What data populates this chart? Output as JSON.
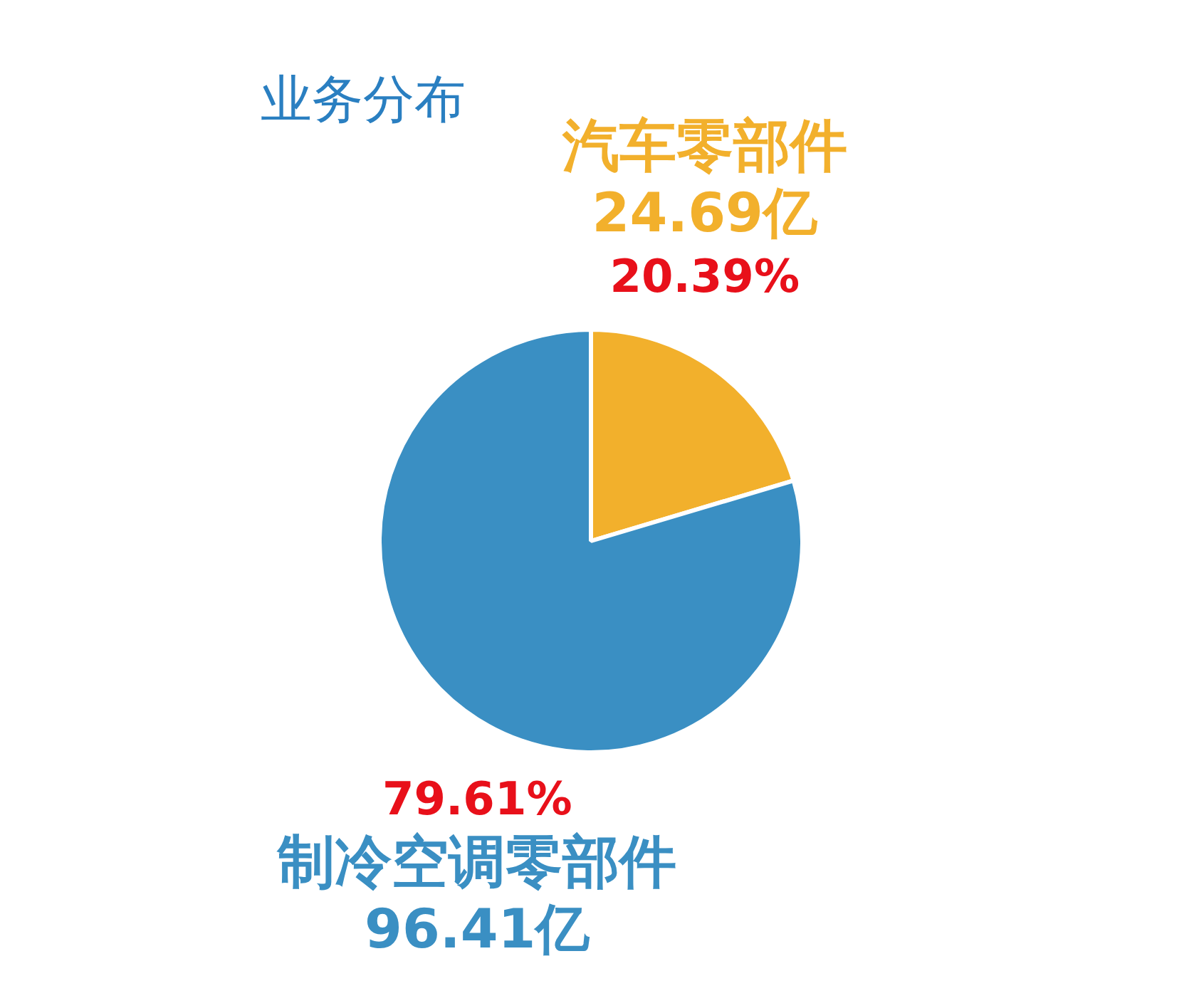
{
  "chart_data": {
    "type": "pie",
    "title": "业务分布",
    "categories": [
      "汽车零部件",
      "制冷空调零部件"
    ],
    "values": [
      24.69,
      96.41
    ],
    "value_labels": [
      "24.69亿",
      "96.41亿"
    ],
    "annotations": [
      "20.39%",
      "79.61%"
    ],
    "colors": [
      "#f2b02c",
      "#3a8fc3"
    ]
  }
}
